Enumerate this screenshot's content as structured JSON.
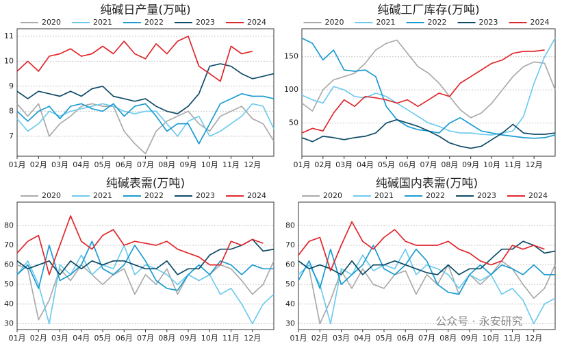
{
  "watermark": "公众号 · 永安研究",
  "chart_data": [
    {
      "type": "line",
      "title": "纯碱日产量(万吨)",
      "legend": "top",
      "grid": true,
      "x": [
        0,
        0.5,
        1,
        1.5,
        2,
        2.5,
        3,
        3.5,
        4,
        4.5,
        5,
        5.5,
        6,
        6.5,
        7,
        7.5,
        8,
        8.5,
        9,
        9.5,
        10,
        10.5,
        11,
        11.5,
        12
      ],
      "xlim": [
        0,
        12
      ],
      "xticks": [
        {
          "value": 0,
          "label": "01月"
        },
        {
          "value": 1,
          "label": "02月"
        },
        {
          "value": 2,
          "label": "03月"
        },
        {
          "value": 3,
          "label": "04月"
        },
        {
          "value": 4,
          "label": "05月"
        },
        {
          "value": 5,
          "label": "06月"
        },
        {
          "value": 6,
          "label": "07月"
        },
        {
          "value": 7,
          "label": "08月"
        },
        {
          "value": 8,
          "label": "09月"
        },
        {
          "value": 9,
          "label": "10月"
        },
        {
          "value": 10,
          "label": "11月"
        },
        {
          "value": 11,
          "label": "12月"
        }
      ],
      "ylim": [
        6.2,
        11.3
      ],
      "yticks": [
        7,
        8,
        9,
        10,
        11
      ],
      "series": [
        {
          "name": "2020",
          "color": "#aaaaaa",
          "values": [
            8.3,
            7.8,
            8.3,
            7.0,
            7.5,
            7.8,
            8.2,
            8.3,
            8.2,
            8.2,
            7.2,
            6.7,
            6.3,
            7.2,
            7.6,
            7.8,
            8.0,
            7.5,
            7.2,
            7.8,
            8.0,
            8.2,
            7.7,
            7.5,
            6.8
          ]
        },
        {
          "name": "2021",
          "color": "#6fcbee",
          "values": [
            7.7,
            7.2,
            7.5,
            8.0,
            7.8,
            8.0,
            8.1,
            8.2,
            8.3,
            8.2,
            8.0,
            7.9,
            8.0,
            8.0,
            7.5,
            7.0,
            7.6,
            7.8,
            7.0,
            7.2,
            7.5,
            7.8,
            8.3,
            8.2,
            7.3
          ]
        },
        {
          "name": "2022",
          "color": "#1a9bd1",
          "values": [
            8.0,
            7.6,
            8.0,
            8.2,
            7.7,
            8.2,
            8.3,
            8.1,
            8.0,
            8.3,
            7.8,
            8.2,
            8.3,
            7.8,
            7.2,
            7.5,
            7.5,
            6.7,
            7.5,
            8.3,
            8.5,
            8.7,
            8.6,
            8.6,
            8.5
          ]
        },
        {
          "name": "2023",
          "color": "#0d4a66",
          "values": [
            8.8,
            8.5,
            8.8,
            8.7,
            8.6,
            8.8,
            8.6,
            8.9,
            9.0,
            8.6,
            8.5,
            8.4,
            8.5,
            8.2,
            8.0,
            7.9,
            8.2,
            8.7,
            9.8,
            9.9,
            9.8,
            9.5,
            9.3,
            9.4,
            9.5
          ]
        },
        {
          "name": "2024",
          "color": "#e0262b",
          "values": [
            9.6,
            10.0,
            9.6,
            10.2,
            10.3,
            10.5,
            10.2,
            10.3,
            10.6,
            10.3,
            10.8,
            10.3,
            10.1,
            10.7,
            10.3,
            10.8,
            11.0,
            9.8,
            9.5,
            9.2,
            10.6,
            10.3,
            10.4,
            null,
            null
          ]
        }
      ]
    },
    {
      "type": "line",
      "title": "纯碱工厂库存(万吨)",
      "legend": "top",
      "grid": true,
      "x": [
        0,
        0.5,
        1,
        1.5,
        2,
        2.5,
        3,
        3.5,
        4,
        4.5,
        5,
        5.5,
        6,
        6.5,
        7,
        7.5,
        8,
        8.5,
        9,
        9.5,
        10,
        10.5,
        11,
        11.5,
        12
      ],
      "xlim": [
        0,
        12
      ],
      "xticks": [
        {
          "value": 0,
          "label": "01月"
        },
        {
          "value": 1,
          "label": "02月"
        },
        {
          "value": 2,
          "label": "03月"
        },
        {
          "value": 3,
          "label": "04月"
        },
        {
          "value": 4,
          "label": "05月"
        },
        {
          "value": 5,
          "label": "06月"
        },
        {
          "value": 6,
          "label": "07月"
        },
        {
          "value": 7,
          "label": "08月"
        },
        {
          "value": 8,
          "label": "09月"
        },
        {
          "value": 9,
          "label": "10月"
        },
        {
          "value": 10,
          "label": "11月"
        },
        {
          "value": 11,
          "label": "12月"
        }
      ],
      "ylim": [
        0,
        192
      ],
      "yticks": [
        50,
        100,
        150
      ],
      "series": [
        {
          "name": "2020",
          "color": "#aaaaaa",
          "values": [
            80,
            68,
            100,
            115,
            120,
            125,
            140,
            160,
            170,
            175,
            155,
            135,
            125,
            110,
            90,
            70,
            58,
            65,
            80,
            100,
            120,
            135,
            142,
            140,
            100
          ]
        },
        {
          "name": "2021",
          "color": "#6fcbee",
          "values": [
            92,
            85,
            80,
            105,
            100,
            90,
            88,
            95,
            90,
            80,
            70,
            60,
            50,
            45,
            38,
            35,
            35,
            33,
            32,
            35,
            38,
            60,
            110,
            150,
            178
          ]
        },
        {
          "name": "2022",
          "color": "#1a9bd1",
          "values": [
            178,
            170,
            145,
            160,
            130,
            128,
            130,
            120,
            75,
            55,
            45,
            40,
            38,
            35,
            50,
            58,
            48,
            38,
            35,
            32,
            30,
            28,
            27,
            28,
            32
          ]
        },
        {
          "name": "2023",
          "color": "#0d4a66",
          "values": [
            28,
            22,
            30,
            28,
            25,
            28,
            30,
            35,
            50,
            55,
            50,
            45,
            38,
            30,
            20,
            15,
            12,
            15,
            25,
            35,
            48,
            35,
            33,
            33,
            35
          ]
        },
        {
          "name": "2024",
          "color": "#e0262b",
          "values": [
            35,
            42,
            38,
            65,
            85,
            75,
            90,
            88,
            85,
            80,
            85,
            75,
            85,
            95,
            90,
            110,
            120,
            130,
            140,
            145,
            155,
            158,
            158,
            160,
            null
          ]
        }
      ]
    },
    {
      "type": "line",
      "title": "纯碱表需(万吨)",
      "legend": "top",
      "grid": true,
      "x": [
        0,
        0.5,
        1,
        1.5,
        2,
        2.5,
        3,
        3.5,
        4,
        4.5,
        5,
        5.5,
        6,
        6.5,
        7,
        7.5,
        8,
        8.5,
        9,
        9.5,
        10,
        10.5,
        11,
        11.5,
        12
      ],
      "xlim": [
        0,
        12
      ],
      "xticks": [
        {
          "value": 0,
          "label": "01月"
        },
        {
          "value": 1,
          "label": "02月"
        },
        {
          "value": 2,
          "label": "03月"
        },
        {
          "value": 3,
          "label": "04月"
        },
        {
          "value": 4,
          "label": "05月"
        },
        {
          "value": 5,
          "label": "06月"
        },
        {
          "value": 6,
          "label": "07月"
        },
        {
          "value": 7,
          "label": "08月"
        },
        {
          "value": 8,
          "label": "09月"
        },
        {
          "value": 9,
          "label": "10月"
        },
        {
          "value": 10,
          "label": "11月"
        },
        {
          "value": 11,
          "label": "12月"
        }
      ],
      "ylim": [
        27,
        92
      ],
      "yticks": [
        30,
        40,
        50,
        60,
        70,
        80
      ],
      "series": [
        {
          "name": "2020",
          "color": "#aaaaaa",
          "values": [
            60,
            58,
            32,
            42,
            58,
            52,
            60,
            55,
            50,
            55,
            58,
            45,
            55,
            50,
            58,
            45,
            55,
            52,
            55,
            60,
            58,
            52,
            45,
            50,
            62
          ]
        },
        {
          "name": "2021",
          "color": "#6fcbee",
          "values": [
            55,
            62,
            50,
            30,
            60,
            55,
            65,
            55,
            60,
            58,
            70,
            55,
            60,
            58,
            55,
            50,
            55,
            52,
            55,
            45,
            48,
            40,
            30,
            40,
            45
          ]
        },
        {
          "name": "2022",
          "color": "#1a9bd1",
          "values": [
            55,
            60,
            48,
            70,
            52,
            55,
            60,
            72,
            58,
            55,
            60,
            70,
            62,
            52,
            48,
            47,
            55,
            60,
            55,
            62,
            60,
            55,
            60,
            58,
            58
          ]
        },
        {
          "name": "2023",
          "color": "#0d4a66",
          "values": [
            62,
            58,
            60,
            62,
            55,
            62,
            58,
            62,
            60,
            62,
            62,
            60,
            58,
            58,
            62,
            55,
            58,
            58,
            65,
            68,
            68,
            70,
            73,
            67,
            68
          ]
        },
        {
          "name": "2024",
          "color": "#e0262b",
          "values": [
            66,
            72,
            75,
            55,
            70,
            85,
            72,
            68,
            75,
            78,
            70,
            72,
            71,
            70,
            72,
            68,
            66,
            64,
            60,
            60,
            72,
            70,
            73,
            71,
            null
          ]
        }
      ]
    },
    {
      "type": "line",
      "title": "纯碱国内表需(万吨)",
      "legend": "top",
      "grid": true,
      "x": [
        0,
        0.5,
        1,
        1.5,
        2,
        2.5,
        3,
        3.5,
        4,
        4.5,
        5,
        5.5,
        6,
        6.5,
        7,
        7.5,
        8,
        8.5,
        9,
        9.5,
        10,
        10.5,
        11,
        11.5,
        12
      ],
      "xlim": [
        0,
        12
      ],
      "xticks": [
        {
          "value": 0,
          "label": "01月"
        },
        {
          "value": 1,
          "label": "02月"
        },
        {
          "value": 2,
          "label": "03月"
        },
        {
          "value": 3,
          "label": "04月"
        },
        {
          "value": 4,
          "label": "05月"
        },
        {
          "value": 5,
          "label": "06月"
        },
        {
          "value": 6,
          "label": "07月"
        },
        {
          "value": 7,
          "label": "08月"
        },
        {
          "value": 8,
          "label": "09月"
        },
        {
          "value": 9,
          "label": "10月"
        },
        {
          "value": 10,
          "label": "11月"
        },
        {
          "value": 11,
          "label": "12月"
        }
      ],
      "ylim": [
        27,
        92
      ],
      "yticks": [
        30,
        40,
        50,
        60,
        70,
        80
      ],
      "series": [
        {
          "name": "2020",
          "color": "#aaaaaa",
          "values": [
            62,
            58,
            30,
            42,
            57,
            48,
            58,
            50,
            48,
            55,
            57,
            45,
            55,
            50,
            60,
            45,
            55,
            50,
            55,
            62,
            58,
            50,
            43,
            48,
            60
          ]
        },
        {
          "name": "2021",
          "color": "#6fcbee",
          "values": [
            55,
            60,
            50,
            30,
            58,
            55,
            65,
            57,
            60,
            58,
            68,
            55,
            60,
            58,
            55,
            48,
            55,
            52,
            55,
            45,
            48,
            42,
            30,
            40,
            43
          ]
        },
        {
          "name": "2022",
          "color": "#1a9bd1",
          "values": [
            52,
            62,
            48,
            68,
            50,
            55,
            60,
            70,
            58,
            55,
            60,
            68,
            62,
            50,
            46,
            45,
            55,
            60,
            55,
            60,
            58,
            55,
            60,
            55,
            55
          ]
        },
        {
          "name": "2023",
          "color": "#0d4a66",
          "values": [
            62,
            58,
            60,
            58,
            55,
            62,
            55,
            60,
            60,
            62,
            60,
            58,
            56,
            55,
            60,
            55,
            58,
            58,
            63,
            68,
            68,
            72,
            70,
            66,
            67
          ]
        },
        {
          "name": "2024",
          "color": "#e0262b",
          "values": [
            65,
            72,
            74,
            57,
            70,
            82,
            72,
            68,
            74,
            78,
            72,
            70,
            70,
            70,
            72,
            68,
            66,
            62,
            60,
            62,
            70,
            68,
            70,
            68,
            null
          ]
        }
      ]
    }
  ]
}
